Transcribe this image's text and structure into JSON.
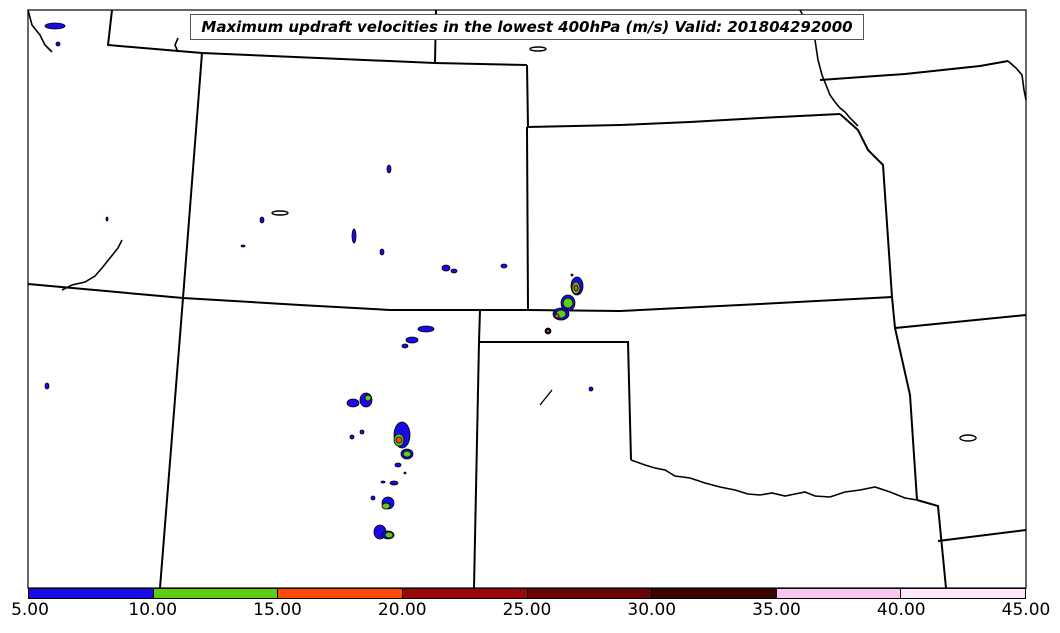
{
  "title": "Maximum updraft velocities in the lowest 400hPa (m/s) Valid: 201804292000",
  "colorbar": {
    "ticks": [
      "5.00",
      "10.00",
      "15.00",
      "20.00",
      "25.00",
      "30.00",
      "35.00",
      "40.00",
      "45.00"
    ],
    "colors": [
      "#1a0ae6",
      "#5ccc14",
      "#ff4a08",
      "#990808",
      "#6b0505",
      "#3d0202",
      "#fcc6f2",
      "#ffe8fa"
    ]
  },
  "palette": {
    "low": "#1a0ae6",
    "mid": "#5ccc14",
    "high": "#ff4a08",
    "higher": "#990808"
  }
}
